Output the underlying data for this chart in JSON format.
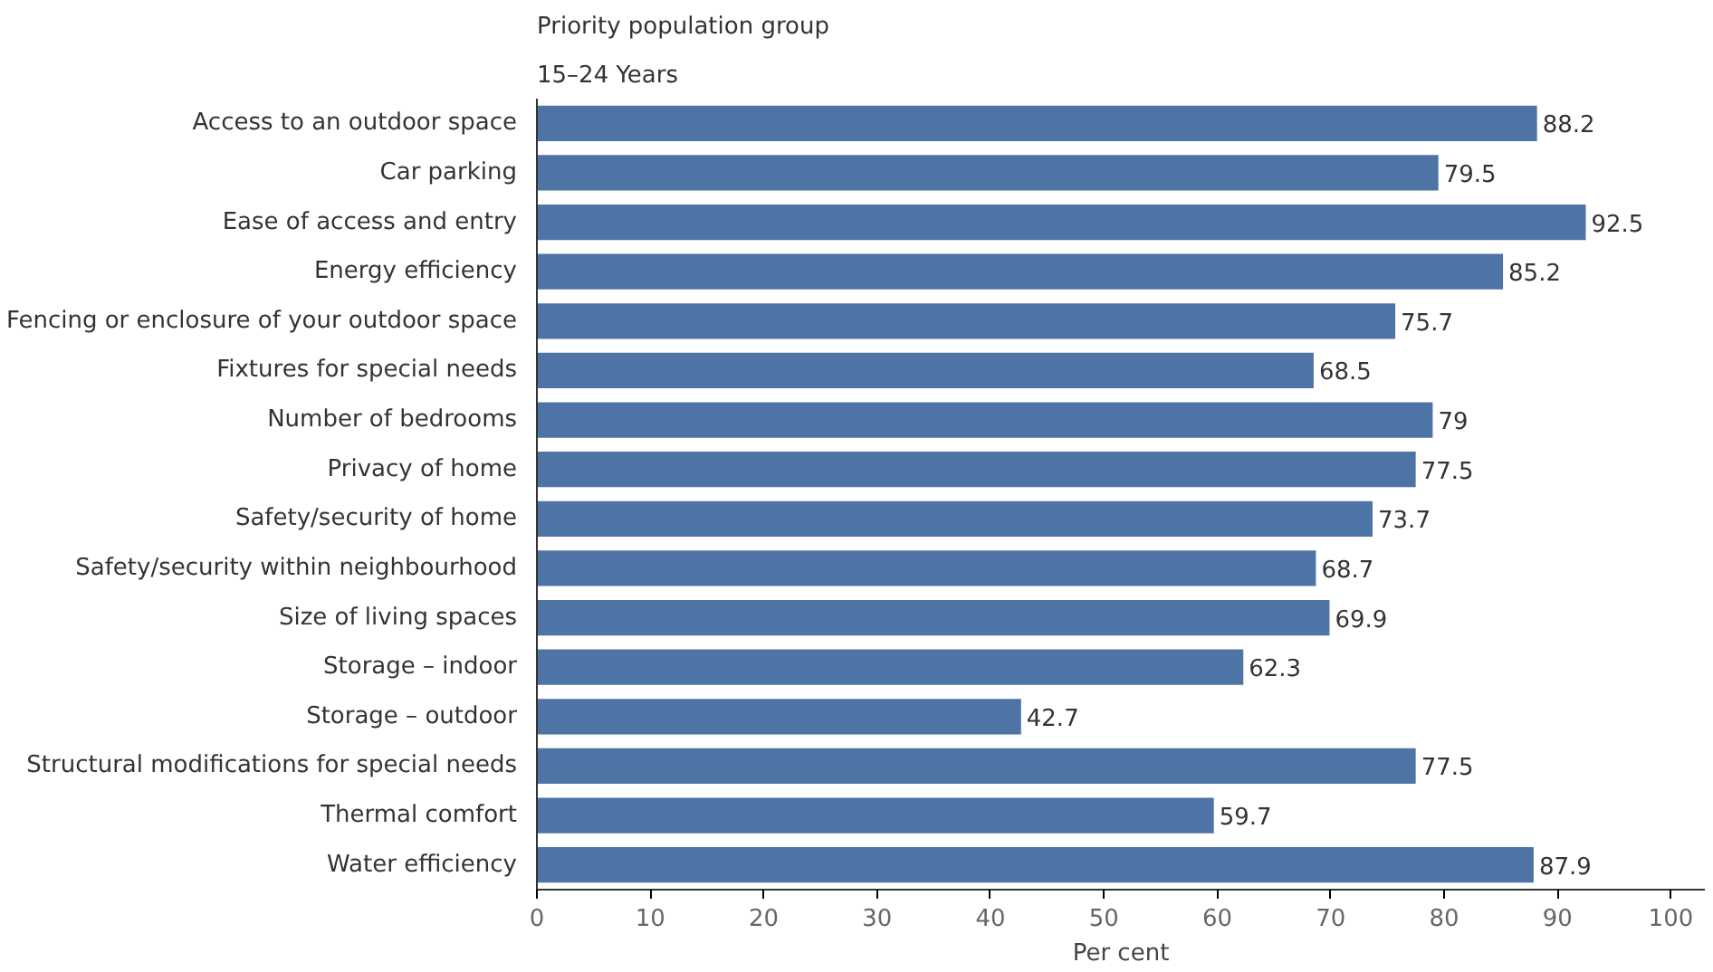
{
  "chart_data": {
    "type": "bar",
    "orientation": "horizontal",
    "title": "Priority population group",
    "subtitle": "15–24 Years",
    "xlabel": "Per cent",
    "categories": [
      "Access to an outdoor space",
      "Car parking",
      "Ease of access and entry",
      "Energy efficiency",
      "Fencing or enclosure of your outdoor space",
      "Fixtures for special needs",
      "Number of bedrooms",
      "Privacy of home",
      "Safety/security of home",
      "Safety/security within neighbourhood",
      "Size of living spaces",
      "Storage – indoor",
      "Storage – outdoor",
      "Structural modifications for special needs",
      "Thermal comfort",
      "Water efficiency"
    ],
    "values": [
      88.2,
      79.5,
      92.5,
      85.2,
      75.7,
      68.5,
      79,
      77.5,
      73.7,
      68.7,
      69.9,
      62.3,
      42.7,
      77.5,
      59.7,
      87.9
    ],
    "color": "#4e74a6",
    "data_labels": true,
    "grid": false,
    "xlim": [
      0,
      103
    ],
    "xticks": [
      0,
      10,
      20,
      30,
      40,
      50,
      60,
      70,
      80,
      90,
      100
    ]
  }
}
